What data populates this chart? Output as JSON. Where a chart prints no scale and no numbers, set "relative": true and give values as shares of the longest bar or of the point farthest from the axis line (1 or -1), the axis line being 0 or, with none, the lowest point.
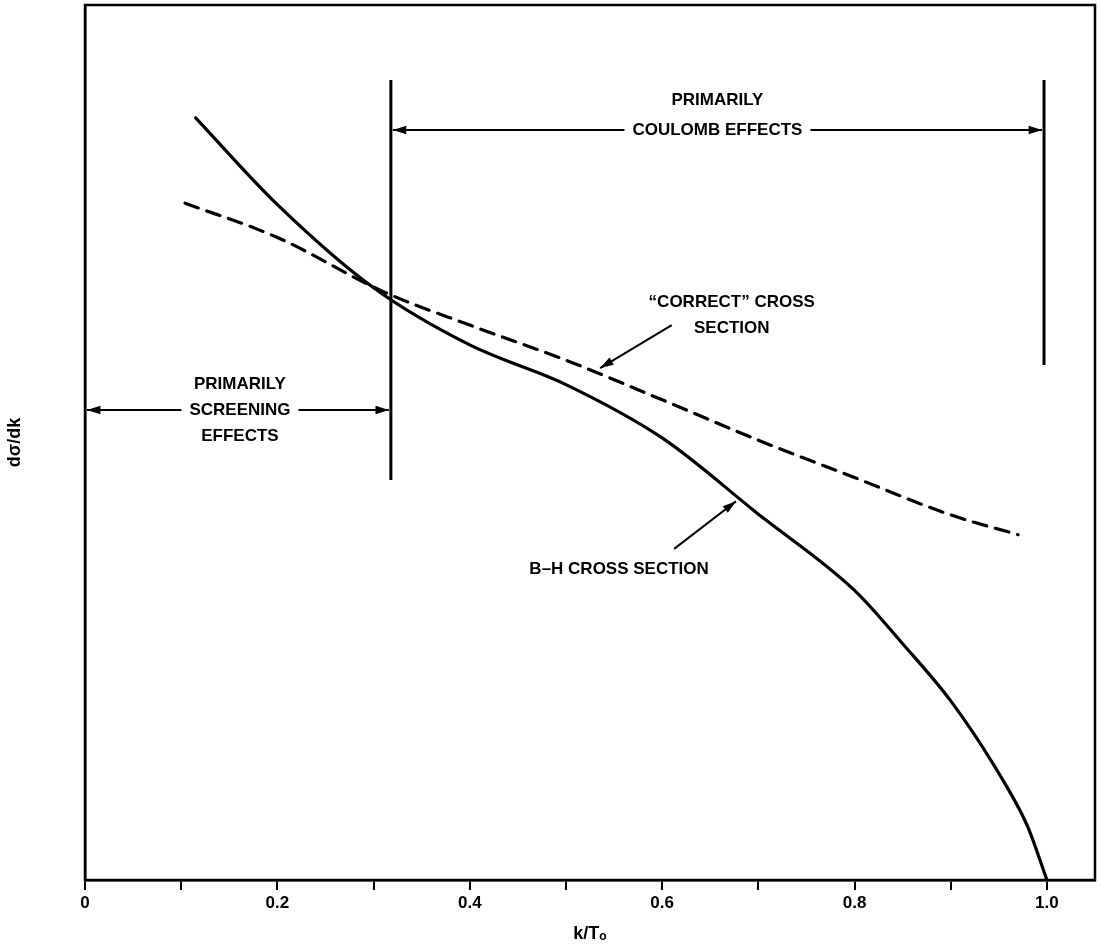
{
  "chart_data": {
    "type": "line",
    "xlabel": "k/Tₒ",
    "ylabel": "dσ/dk",
    "relative": true,
    "grid": false,
    "legend": false,
    "marker": "none",
    "xlim": [
      0,
      1.05
    ],
    "xticks": [
      0,
      {
        "value": 0.1,
        "label": null
      },
      0.2,
      {
        "value": 0.3,
        "label": null
      },
      0.4,
      {
        "value": 0.5,
        "label": null
      },
      0.6,
      {
        "value": 0.7,
        "label": null
      },
      0.8,
      {
        "value": 0.9,
        "label": null
      },
      {
        "value": 1,
        "label": "1.0"
      }
    ],
    "series": [
      {
        "color": "#000000",
        "line_style": "solid",
        "x": [
          0.115,
          0.2,
          0.3,
          0.4,
          0.5,
          0.6,
          0.7,
          0.8,
          0.85,
          0.9,
          0.95,
          0.98,
          1.0
        ],
        "values": [
          1,
          0.886,
          0.777,
          0.702,
          0.65,
          0.58,
          0.48,
          0.38,
          0.31,
          0.235,
          0.14,
          0.07,
          0
        ]
      },
      {
        "color": "#000000",
        "line_style": "dashed",
        "x": [
          0.104,
          0.2,
          0.31,
          0.4,
          0.5,
          0.6,
          0.7,
          0.8,
          0.9,
          0.97
        ],
        "values": [
          0.888,
          0.843,
          0.772,
          0.728,
          0.682,
          0.63,
          0.577,
          0.528,
          0.479,
          0.453
        ]
      }
    ],
    "ref_lines": [
      {
        "axis": "x",
        "value": 0.318,
        "color": "#000000"
      },
      {
        "axis": "x",
        "value": 0.997,
        "color": "#000000"
      }
    ],
    "annotations": [
      "PRIMARILY COULOMB EFFECTS",
      "PRIMARILY SCREENING EFFECTS",
      {
        "text": "“CORRECT” CROSS SECTION",
        "x": 0.532,
        "y": 0.669
      },
      {
        "text": "B–H CROSS SECTION",
        "x": 0.68,
        "y": 0.5
      }
    ]
  }
}
